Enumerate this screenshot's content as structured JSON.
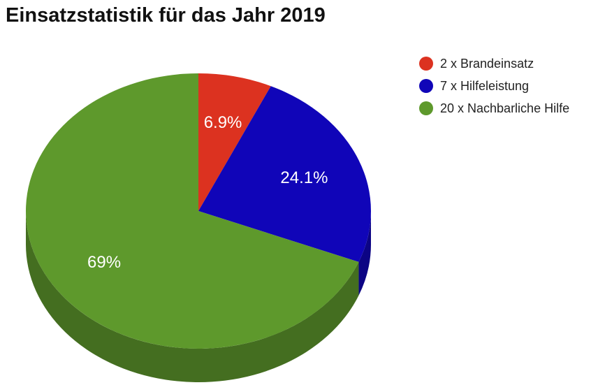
{
  "chart_data": {
    "type": "pie",
    "title": "Einsatzstatistik für das Jahr 2019",
    "slices": [
      {
        "label": "2 x Brandeinsatz",
        "value": 2,
        "percent_label": "6.9%",
        "color": "#dc3220"
      },
      {
        "label": "7 x Hilfeleistung",
        "value": 7,
        "percent_label": "24.1%",
        "color": "#1005b8"
      },
      {
        "label": "20 x Nachbarliche Hilfe",
        "value": 20,
        "percent_label": "69%",
        "color": "#5e992c"
      }
    ],
    "legend_position": "right",
    "style": "3d"
  }
}
